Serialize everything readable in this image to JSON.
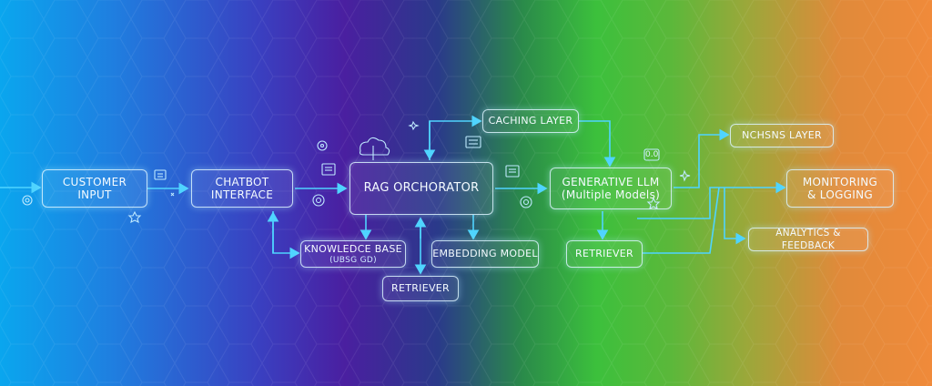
{
  "nodes": {
    "customer_input": {
      "line1": "CUSTOMER",
      "line2": "INPUT"
    },
    "chatbot_interface": {
      "line1": "CHATBOT",
      "line2": "INTERFACE"
    },
    "rag_orchestrator": {
      "label": "RAG ORCHORATOR"
    },
    "caching_layer": {
      "label": "CACHING LAYER"
    },
    "knowledge_base": {
      "label": "KNOWLEDCE BASE",
      "sublabel": "(UBSG GD)"
    },
    "embedding_model": {
      "label": "EMBEDDING MODEL"
    },
    "retriever_left": {
      "label": "RETRIEVER"
    },
    "generative_llm": {
      "line1": "GENERATIVE LLM",
      "line2": "(Multiple Models)"
    },
    "retriever_right": {
      "label": "RETRIEVER"
    },
    "nchsns_layer": {
      "label": "NCHSNS LAYER"
    },
    "monitoring_logging": {
      "line1": "MONITORING",
      "line2": "& LOGGING"
    },
    "analytics_feedback": {
      "label": "ANALYTICS & FEEDBACK"
    }
  },
  "small_tags": {
    "llm_badge": "0.0"
  },
  "colors": {
    "connector": "#4fd4ff",
    "node_border": "#dcf5ff"
  }
}
